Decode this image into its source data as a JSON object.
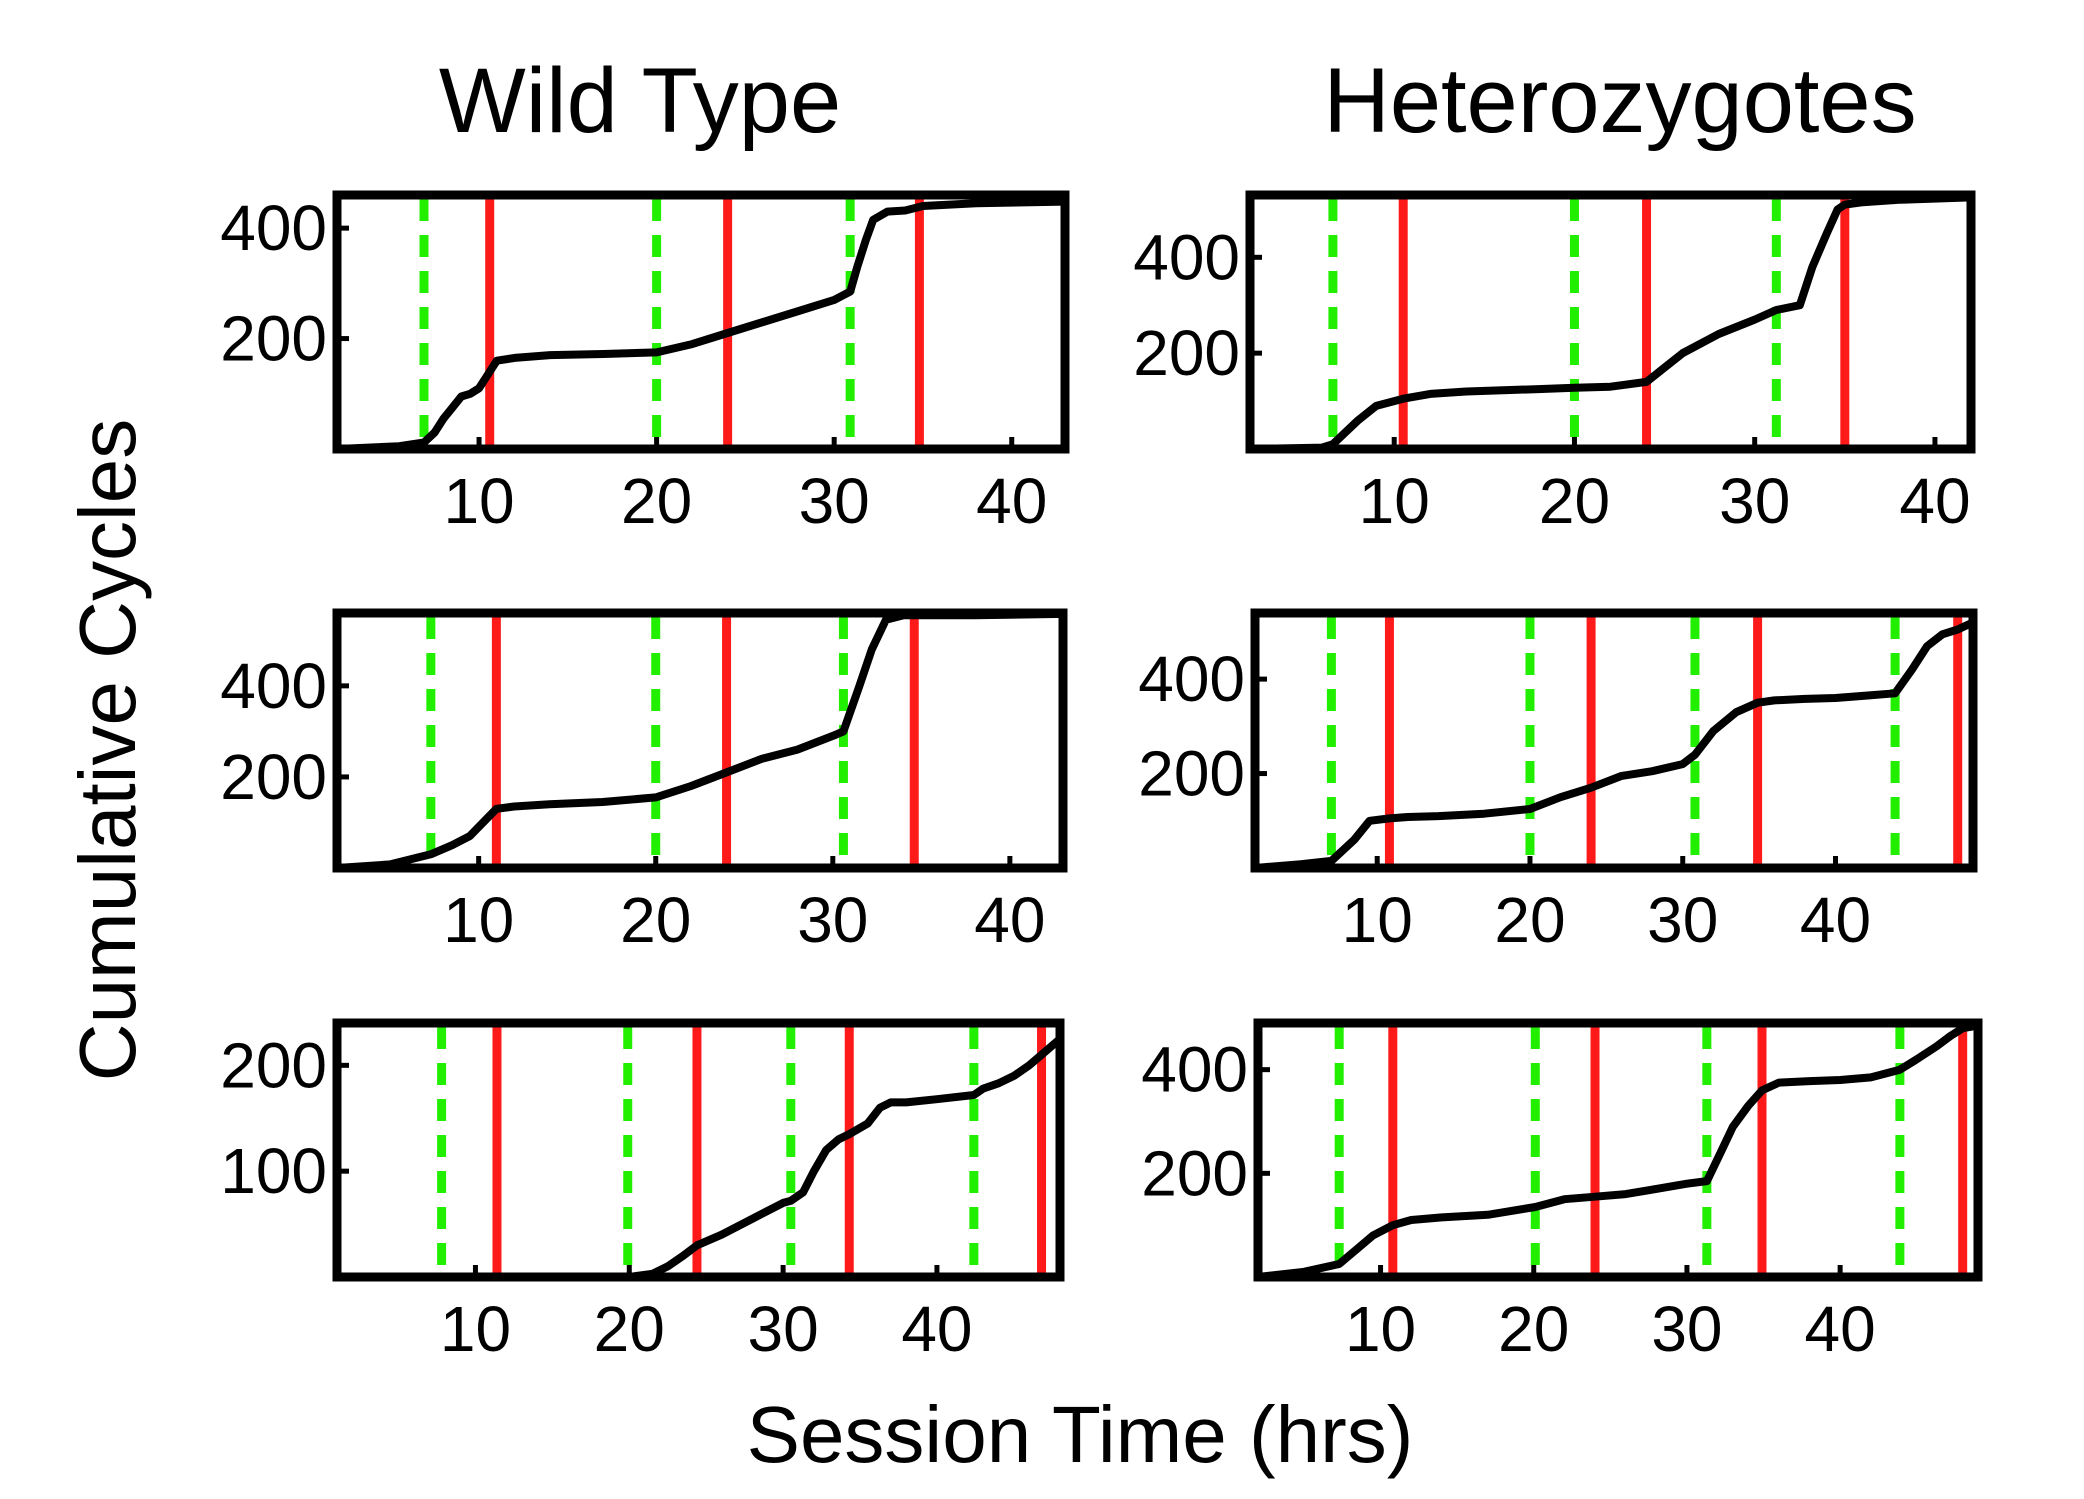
{
  "figure": {
    "xlabel": "Session Time (hrs)",
    "ylabel": "Cumulative Cycles",
    "colors": {
      "curve": "#000000",
      "light_on_marker": "#22ee00",
      "light_off_marker": "#ff1a1a"
    }
  },
  "chart_data": [
    {
      "id": "wt-1",
      "type": "line",
      "title": "Wild Type",
      "column": "left",
      "row": 1,
      "xlim": [
        2,
        43
      ],
      "ylim": [
        0,
        460
      ],
      "xticks": [
        10,
        20,
        30,
        40
      ],
      "yticks": [
        200,
        400
      ],
      "light_on_lines": [
        6.9,
        20,
        30.9
      ],
      "light_off_lines": [
        10.6,
        24,
        34.8
      ],
      "series": [
        {
          "name": "Cumulative cycles",
          "x": [
            2,
            5.5,
            6.9,
            7.5,
            8,
            8.5,
            9,
            9.5,
            10,
            10.5,
            11,
            12,
            14,
            17,
            20,
            22,
            24,
            26,
            28,
            30,
            30.9,
            31.3,
            31.8,
            32.2,
            33,
            34,
            35,
            38,
            43
          ],
          "y": [
            0,
            5,
            12,
            30,
            55,
            75,
            95,
            100,
            110,
            135,
            160,
            165,
            170,
            172,
            175,
            190,
            210,
            230,
            250,
            270,
            285,
            330,
            380,
            415,
            430,
            432,
            440,
            445,
            448
          ]
        }
      ]
    },
    {
      "id": "het-1",
      "type": "line",
      "title": "Heterozygotes",
      "column": "right",
      "row": 1,
      "xlim": [
        2,
        42
      ],
      "ylim": [
        0,
        530
      ],
      "xticks": [
        10,
        20,
        30,
        40
      ],
      "yticks": [
        200,
        400
      ],
      "light_on_lines": [
        6.6,
        20,
        31.2
      ],
      "light_off_lines": [
        10.5,
        24,
        35
      ],
      "series": [
        {
          "name": "Cumulative cycles",
          "x": [
            2,
            6,
            6.6,
            8,
            9,
            10.5,
            12,
            14,
            18,
            20,
            22,
            24,
            25,
            26,
            28,
            30,
            31.2,
            32.5,
            33.2,
            34,
            34.6,
            35,
            36,
            38,
            42
          ],
          "y": [
            0,
            3,
            10,
            60,
            90,
            105,
            115,
            120,
            125,
            128,
            130,
            140,
            170,
            200,
            240,
            270,
            290,
            300,
            380,
            450,
            500,
            510,
            515,
            520,
            525
          ]
        }
      ]
    },
    {
      "id": "wt-2",
      "type": "line",
      "title": "",
      "column": "left",
      "row": 2,
      "xlim": [
        2,
        43
      ],
      "ylim": [
        0,
        560
      ],
      "xticks": [
        10,
        20,
        30,
        40
      ],
      "yticks": [
        200,
        400
      ],
      "light_on_lines": [
        7.3,
        20,
        30.6
      ],
      "light_off_lines": [
        11,
        24,
        34.6
      ],
      "series": [
        {
          "name": "Cumulative cycles",
          "x": [
            2,
            5,
            7.3,
            8.5,
            9.5,
            10.5,
            11,
            12,
            14,
            17,
            20,
            22,
            24,
            26,
            28,
            30,
            30.6,
            31.5,
            32.2,
            33,
            34,
            38,
            43
          ],
          "y": [
            0,
            8,
            30,
            50,
            70,
            110,
            130,
            135,
            140,
            145,
            155,
            180,
            210,
            240,
            260,
            290,
            300,
            400,
            480,
            545,
            555,
            555,
            558
          ]
        }
      ]
    },
    {
      "id": "het-2",
      "type": "line",
      "title": "",
      "column": "right",
      "row": 2,
      "xlim": [
        2,
        49
      ],
      "ylim": [
        0,
        540
      ],
      "xticks": [
        10,
        20,
        30,
        40
      ],
      "yticks": [
        200,
        400
      ],
      "light_on_lines": [
        7,
        20,
        30.8,
        43.9
      ],
      "light_off_lines": [
        10.8,
        24,
        34.9,
        48
      ],
      "series": [
        {
          "name": "Cumulative cycles",
          "x": [
            2,
            5,
            7,
            8.5,
            9.5,
            10.8,
            12,
            14,
            17,
            20,
            22,
            24,
            26,
            28,
            30,
            30.8,
            32,
            33.5,
            34.9,
            36,
            38,
            40,
            42,
            43.9,
            45,
            46,
            47,
            48,
            49
          ],
          "y": [
            0,
            8,
            15,
            60,
            100,
            105,
            108,
            110,
            115,
            125,
            150,
            170,
            195,
            205,
            220,
            240,
            290,
            330,
            350,
            355,
            358,
            360,
            365,
            370,
            420,
            470,
            495,
            505,
            520
          ]
        }
      ]
    },
    {
      "id": "wt-3",
      "type": "line",
      "title": "",
      "column": "left",
      "row": 3,
      "xlim": [
        1,
        48
      ],
      "ylim": [
        0,
        240
      ],
      "xticks": [
        10,
        20,
        30,
        40
      ],
      "yticks": [
        100,
        200
      ],
      "light_on_lines": [
        7.8,
        19.9,
        30.5,
        42.4
      ],
      "light_off_lines": [
        11.4,
        24.4,
        34.3,
        46.8
      ],
      "series": [
        {
          "name": "Cumulative cycles",
          "x": [
            1,
            20,
            21.5,
            22.5,
            23.5,
            24.4,
            26,
            28,
            30,
            30.5,
            31.3,
            32,
            32.8,
            33.6,
            34.3,
            35.5,
            36.3,
            37,
            38,
            40,
            42.4,
            43,
            44,
            45,
            46,
            46.8,
            48
          ],
          "y": [
            0,
            0,
            3,
            10,
            20,
            30,
            40,
            55,
            70,
            72,
            80,
            100,
            120,
            130,
            135,
            145,
            160,
            165,
            165,
            168,
            172,
            178,
            183,
            190,
            200,
            210,
            225
          ]
        }
      ]
    },
    {
      "id": "het-3",
      "type": "line",
      "title": "",
      "column": "right",
      "row": 3,
      "xlim": [
        2,
        49
      ],
      "ylim": [
        0,
        490
      ],
      "xticks": [
        10,
        20,
        30,
        40
      ],
      "yticks": [
        200,
        400
      ],
      "light_on_lines": [
        7.3,
        20.1,
        31.3,
        43.9
      ],
      "light_off_lines": [
        10.8,
        24,
        34.9,
        48
      ],
      "series": [
        {
          "name": "Cumulative cycles",
          "x": [
            2,
            5,
            7.3,
            8.5,
            9.5,
            10.8,
            12,
            14,
            17,
            20.1,
            22,
            24,
            26,
            28,
            30,
            31.3,
            32.2,
            33,
            34,
            34.9,
            36,
            38,
            40,
            42,
            43.9,
            45,
            46.3,
            47.2,
            48,
            49
          ],
          "y": [
            0,
            10,
            25,
            55,
            80,
            100,
            110,
            115,
            120,
            135,
            150,
            155,
            160,
            170,
            180,
            185,
            240,
            290,
            330,
            360,
            375,
            378,
            380,
            385,
            400,
            420,
            445,
            465,
            480,
            485
          ]
        }
      ]
    }
  ]
}
